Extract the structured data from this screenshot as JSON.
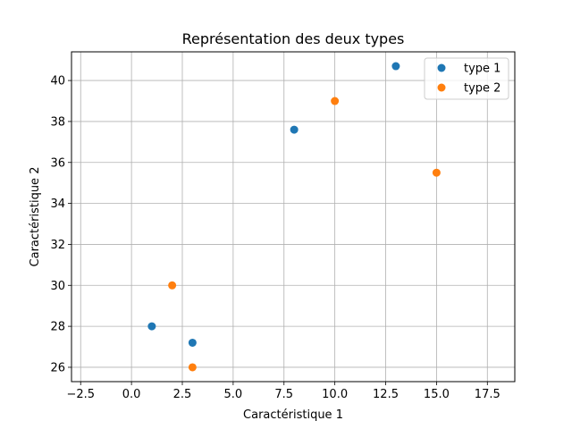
{
  "chart_data": {
    "type": "scatter",
    "title": "Représentation des deux types",
    "xlabel": "Caractéristique 1",
    "ylabel": "Caractéristique 2",
    "xlim": [
      -2.95,
      18.85
    ],
    "ylim": [
      25.3,
      41.4
    ],
    "xticks": [
      -2.5,
      0.0,
      2.5,
      5.0,
      7.5,
      10.0,
      12.5,
      15.0,
      17.5
    ],
    "xtick_labels": [
      "−2.5",
      "0.0",
      "2.5",
      "5.0",
      "7.5",
      "10.0",
      "12.5",
      "15.0",
      "17.5"
    ],
    "yticks": [
      26,
      28,
      30,
      32,
      34,
      36,
      38,
      40
    ],
    "ytick_labels": [
      "26",
      "28",
      "30",
      "32",
      "34",
      "36",
      "38",
      "40"
    ],
    "grid": true,
    "legend_position": "top-right",
    "series": [
      {
        "name": "type 1",
        "color": "#1f77b4",
        "points": [
          [
            1,
            28
          ],
          [
            3,
            27.2
          ],
          [
            8,
            37.6
          ],
          [
            13,
            40.7
          ]
        ]
      },
      {
        "name": "type 2",
        "color": "#ff7f0e",
        "points": [
          [
            2,
            30
          ],
          [
            3,
            26
          ],
          [
            10,
            39
          ],
          [
            15,
            35.5
          ]
        ]
      }
    ]
  }
}
